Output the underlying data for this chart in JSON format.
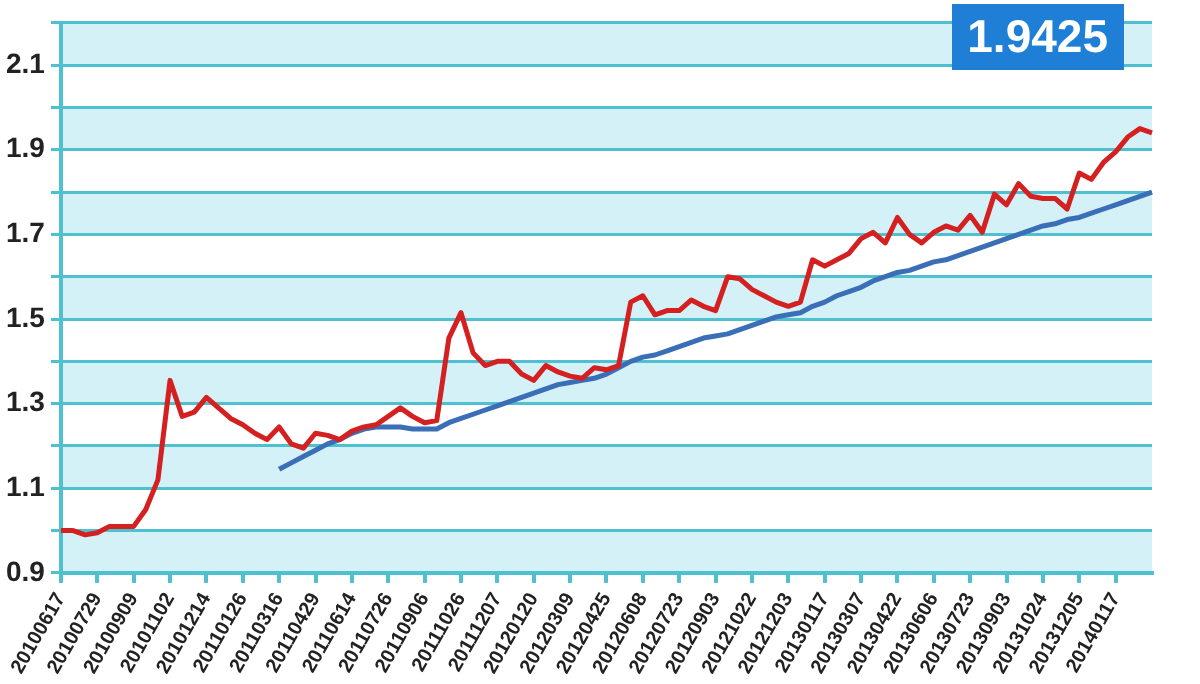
{
  "chart_data": {
    "type": "line",
    "categories": [
      "20100617",
      null,
      null,
      "20100729",
      null,
      null,
      "20100909",
      null,
      null,
      "20101102",
      null,
      null,
      "20101214",
      null,
      null,
      "20110126",
      null,
      null,
      "20110316",
      null,
      null,
      "20110429",
      null,
      null,
      "20110614",
      null,
      null,
      "20110726",
      null,
      null,
      "20110906",
      null,
      null,
      "20111026",
      null,
      null,
      "20111207",
      null,
      null,
      "20120120",
      null,
      null,
      "20120309",
      null,
      null,
      "20120425",
      null,
      null,
      "20120608",
      null,
      null,
      "20120723",
      null,
      null,
      "20120903",
      null,
      null,
      "20121022",
      null,
      null,
      "20121203",
      null,
      null,
      "20130117",
      null,
      null,
      "20130307",
      null,
      null,
      "20130422",
      null,
      null,
      "20130606",
      null,
      null,
      "20130723",
      null,
      null,
      "20130903",
      null,
      null,
      "20131024",
      null,
      null,
      "20131205",
      null,
      null,
      "20140117",
      null,
      null,
      null
    ],
    "series": [
      {
        "color": "#d42020",
        "values": [
          1.0,
          1.0,
          0.99,
          0.995,
          1.01,
          1.01,
          1.01,
          1.05,
          1.12,
          1.355,
          1.27,
          1.28,
          1.315,
          1.29,
          1.265,
          1.25,
          1.23,
          1.215,
          1.245,
          1.205,
          1.195,
          1.23,
          1.225,
          1.215,
          1.235,
          1.245,
          1.25,
          1.27,
          1.29,
          1.27,
          1.255,
          1.26,
          1.455,
          1.515,
          1.42,
          1.39,
          1.4,
          1.4,
          1.37,
          1.355,
          1.39,
          1.375,
          1.365,
          1.36,
          1.385,
          1.38,
          1.39,
          1.54,
          1.555,
          1.51,
          1.52,
          1.52,
          1.545,
          1.53,
          1.52,
          1.6,
          1.595,
          1.57,
          1.555,
          1.54,
          1.53,
          1.54,
          1.64,
          1.625,
          1.64,
          1.655,
          1.69,
          1.705,
          1.68,
          1.74,
          1.7,
          1.68,
          1.705,
          1.72,
          1.71,
          1.745,
          1.705,
          1.795,
          1.77,
          1.82,
          1.79,
          1.785,
          1.785,
          1.76,
          1.845,
          1.83,
          1.87,
          1.895,
          1.93,
          1.95,
          1.94
        ]
      },
      {
        "color": "#3a6fb8",
        "values": [
          null,
          null,
          null,
          null,
          null,
          null,
          null,
          null,
          null,
          null,
          null,
          null,
          null,
          null,
          null,
          null,
          null,
          null,
          1.145,
          1.16,
          1.175,
          1.19,
          1.205,
          1.215,
          1.23,
          1.24,
          1.245,
          1.245,
          1.245,
          1.24,
          1.24,
          1.24,
          1.255,
          1.265,
          1.275,
          1.285,
          1.295,
          1.305,
          1.315,
          1.325,
          1.335,
          1.345,
          1.35,
          1.355,
          1.36,
          1.37,
          1.385,
          1.4,
          1.41,
          1.415,
          1.425,
          1.435,
          1.445,
          1.455,
          1.46,
          1.465,
          1.475,
          1.485,
          1.495,
          1.505,
          1.51,
          1.515,
          1.53,
          1.54,
          1.555,
          1.565,
          1.575,
          1.59,
          1.6,
          1.61,
          1.615,
          1.625,
          1.635,
          1.64,
          1.65,
          1.66,
          1.67,
          1.68,
          1.69,
          1.7,
          1.71,
          1.72,
          1.725,
          1.735,
          1.74,
          1.75,
          1.76,
          1.77,
          1.78,
          1.79,
          1.8
        ]
      }
    ],
    "ylim": [
      0.9,
      2.2
    ],
    "yticks": [
      0.9,
      {
        "value": 1.0,
        "label": null
      },
      1.1,
      {
        "value": 1.2,
        "label": null
      },
      1.3,
      {
        "value": 1.4,
        "label": null
      },
      1.5,
      {
        "value": 1.6,
        "label": null
      },
      1.7,
      {
        "value": 1.8,
        "label": null
      },
      1.9,
      {
        "value": 2.0,
        "label": null
      },
      2.1,
      {
        "value": 2.2,
        "label": null
      }
    ],
    "grid": "y",
    "legend": false,
    "marker": "none",
    "line_style": "solid",
    "annotations": [
      "1.9425"
    ]
  }
}
